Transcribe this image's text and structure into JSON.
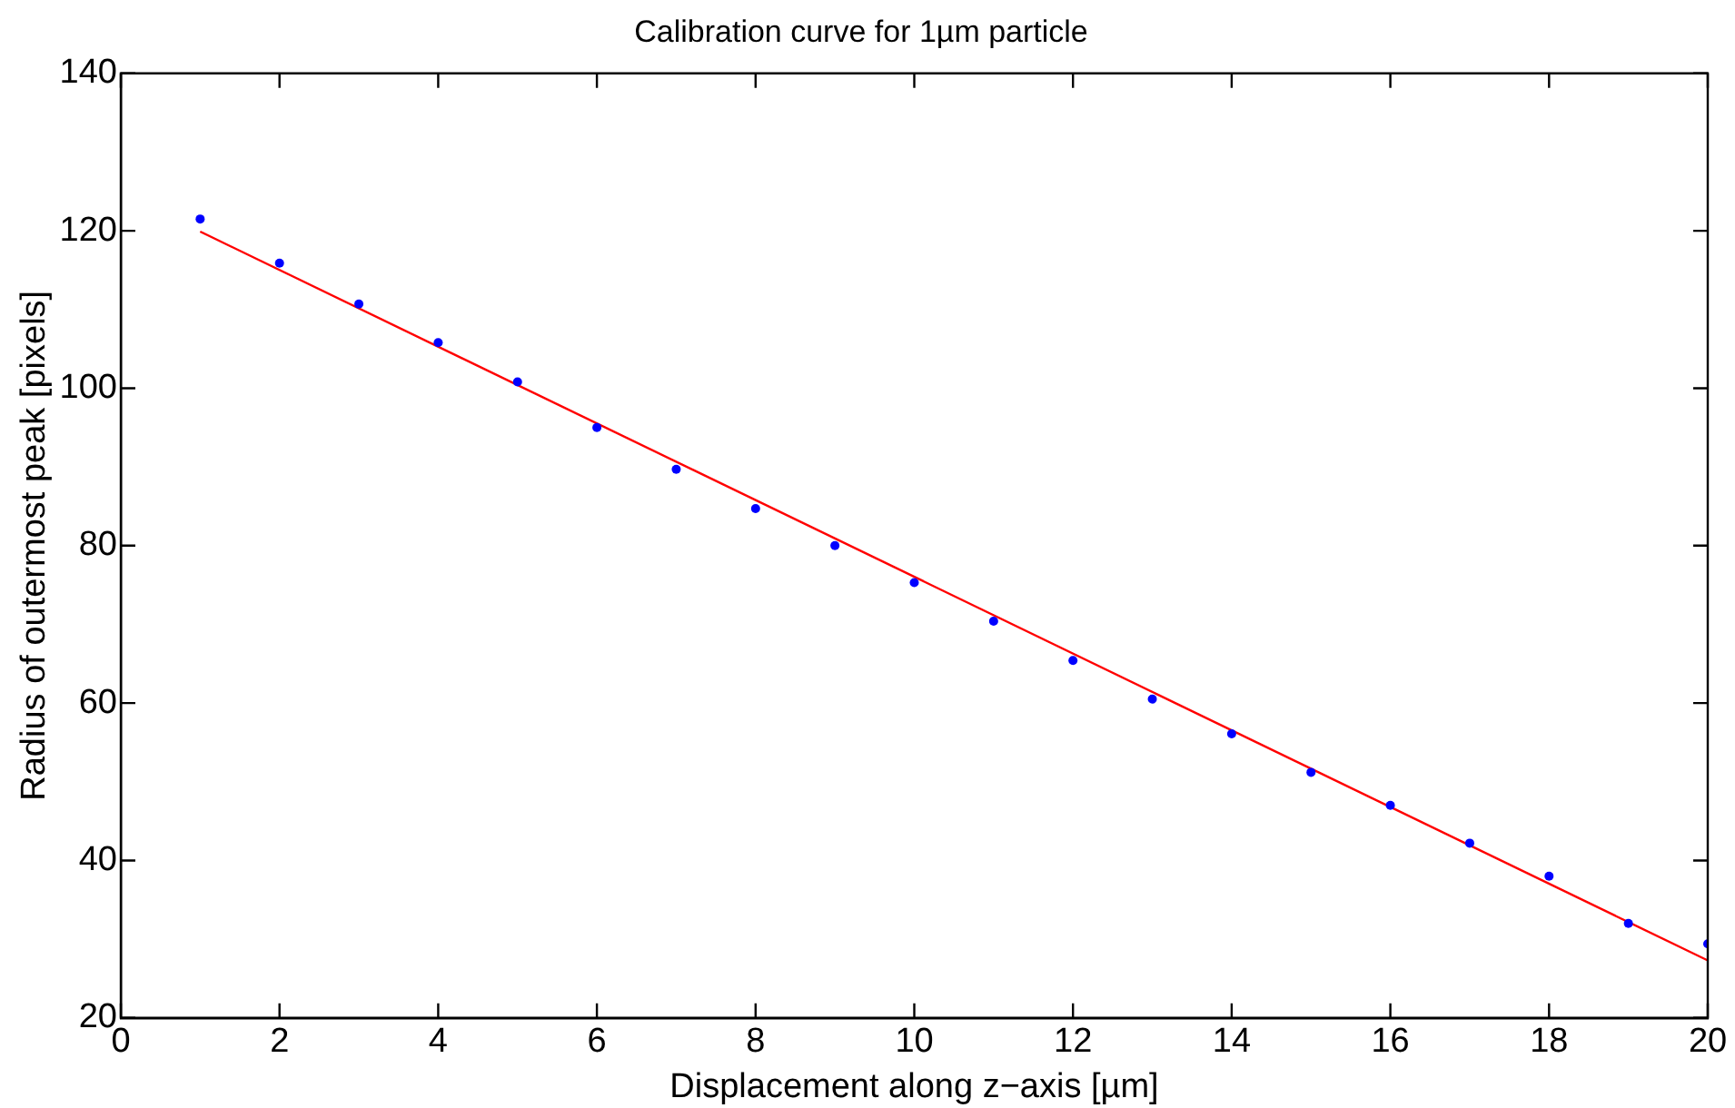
{
  "chart_data": {
    "type": "scatter",
    "title": "Calibration curve for 1µm particle",
    "xlabel": "Displacement along z−axis [µm]",
    "ylabel": "Radius of outermost peak [pixels]",
    "x": [
      1,
      2,
      3,
      4,
      5,
      6,
      7,
      8,
      9,
      10,
      11,
      12,
      13,
      14,
      15,
      16,
      17,
      18,
      19,
      20
    ],
    "series": [
      {
        "type": "scatter",
        "color": "#0000ff",
        "marker": "circle",
        "values": [
          121.5,
          115.9,
          110.7,
          105.8,
          100.8,
          95.0,
          89.7,
          84.7,
          80.0,
          75.3,
          70.4,
          65.4,
          60.5,
          56.1,
          51.2,
          47.0,
          42.2,
          38.0,
          32.0,
          29.4
        ]
      },
      {
        "type": "line",
        "color": "#ff0000",
        "marker": "none",
        "line_style": "solid",
        "x": [
          1,
          20
        ],
        "values": [
          119.9,
          27.3
        ]
      }
    ],
    "xlim": [
      0,
      20
    ],
    "xticks": [
      0,
      2,
      4,
      6,
      8,
      10,
      12,
      14,
      16,
      18,
      20
    ],
    "ylim": [
      20,
      140
    ],
    "yticks": [
      20,
      40,
      60,
      80,
      100,
      120,
      140
    ],
    "grid": false,
    "legend": false
  }
}
